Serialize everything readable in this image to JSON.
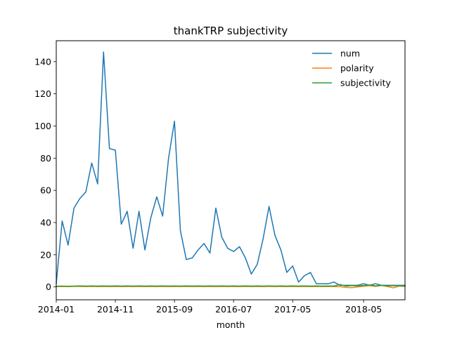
{
  "chart_data": {
    "type": "line",
    "title": "thankTRP subjectivity",
    "xlabel": "month",
    "ylabel": "",
    "x_tick_labels": [
      "2014-01",
      "2014-11",
      "2015-09",
      "2016-07",
      "2017-05",
      "2018-05"
    ],
    "x_tick_months": [
      "2014-01",
      "2014-11",
      "2015-09",
      "2016-07",
      "2017-05",
      "2018-05"
    ],
    "xlim": [
      "2014-01",
      "2018-12"
    ],
    "y_ticks": [
      0,
      20,
      40,
      60,
      80,
      100,
      120,
      140
    ],
    "ylim": [
      -8,
      153
    ],
    "grid": false,
    "legend_position": "top-right",
    "months": [
      "2014-01",
      "2014-02",
      "2014-03",
      "2014-04",
      "2014-05",
      "2014-06",
      "2014-07",
      "2014-08",
      "2014-09",
      "2014-10",
      "2014-11",
      "2014-12",
      "2015-01",
      "2015-02",
      "2015-03",
      "2015-04",
      "2015-05",
      "2015-06",
      "2015-07",
      "2015-08",
      "2015-09",
      "2015-10",
      "2015-11",
      "2015-12",
      "2016-01",
      "2016-02",
      "2016-03",
      "2016-04",
      "2016-05",
      "2016-06",
      "2016-07",
      "2016-08",
      "2016-09",
      "2016-10",
      "2016-11",
      "2016-12",
      "2017-01",
      "2017-02",
      "2017-03",
      "2017-04",
      "2017-05",
      "2017-06",
      "2017-07",
      "2017-08",
      "2017-09",
      "2017-10",
      "2017-11",
      "2017-12",
      "2018-01",
      "2018-02",
      "2018-03",
      "2018-04",
      "2018-05",
      "2018-06",
      "2018-07",
      "2018-08",
      "2018-09",
      "2018-10",
      "2018-11",
      "2018-12"
    ],
    "series": [
      {
        "name": "num",
        "color": "#1f77b4",
        "values": [
          2,
          41,
          26,
          49,
          55,
          59,
          77,
          64,
          146,
          86,
          85,
          39,
          47,
          24,
          47,
          23,
          43,
          56,
          44,
          80,
          103,
          35,
          17,
          18,
          23,
          27,
          21,
          49,
          31,
          24,
          22,
          25,
          18,
          8,
          14,
          30,
          50,
          32,
          23,
          9,
          13,
          3,
          7,
          9,
          2,
          2,
          2,
          3,
          1,
          1,
          1,
          1,
          2,
          1,
          2,
          1,
          1,
          1,
          1,
          1
        ]
      },
      {
        "name": "polarity",
        "color": "#ff7f0e",
        "values": [
          0.2,
          0.3,
          0.2,
          0.3,
          0.3,
          0.2,
          0.3,
          0.2,
          0.3,
          0.2,
          0.3,
          0.2,
          0.3,
          0.2,
          0.3,
          0.2,
          0.3,
          0.2,
          0.3,
          0.2,
          0.3,
          0.2,
          0.3,
          0.2,
          0.3,
          0.2,
          0.3,
          0.2,
          0.3,
          0.2,
          0.3,
          0.2,
          0.3,
          0.2,
          0.3,
          0.2,
          0.3,
          0.2,
          0.3,
          0.2,
          0.3,
          0.2,
          0.3,
          0.2,
          0.3,
          0.2,
          0.3,
          0.2,
          0.2,
          -0.3,
          -0.5,
          0.0,
          0.4,
          0.8,
          0.3,
          0.9,
          0.3,
          -0.6,
          0.5,
          0.3
        ]
      },
      {
        "name": "subjectivity",
        "color": "#2ca02c",
        "values": [
          0.4,
          0.5,
          0.4,
          0.5,
          0.6,
          0.5,
          0.6,
          0.5,
          0.6,
          0.5,
          0.6,
          0.5,
          0.6,
          0.5,
          0.6,
          0.5,
          0.6,
          0.5,
          0.6,
          0.5,
          0.6,
          0.5,
          0.6,
          0.5,
          0.6,
          0.5,
          0.6,
          0.5,
          0.6,
          0.5,
          0.6,
          0.5,
          0.6,
          0.5,
          0.6,
          0.5,
          0.6,
          0.5,
          0.6,
          0.5,
          0.6,
          0.5,
          0.6,
          0.5,
          0.6,
          0.5,
          0.6,
          0.5,
          1.5,
          0.5,
          0.8,
          0.6,
          0.9,
          1.2,
          0.7,
          1.0,
          0.6,
          0.8,
          0.7,
          0.6
        ]
      }
    ]
  }
}
